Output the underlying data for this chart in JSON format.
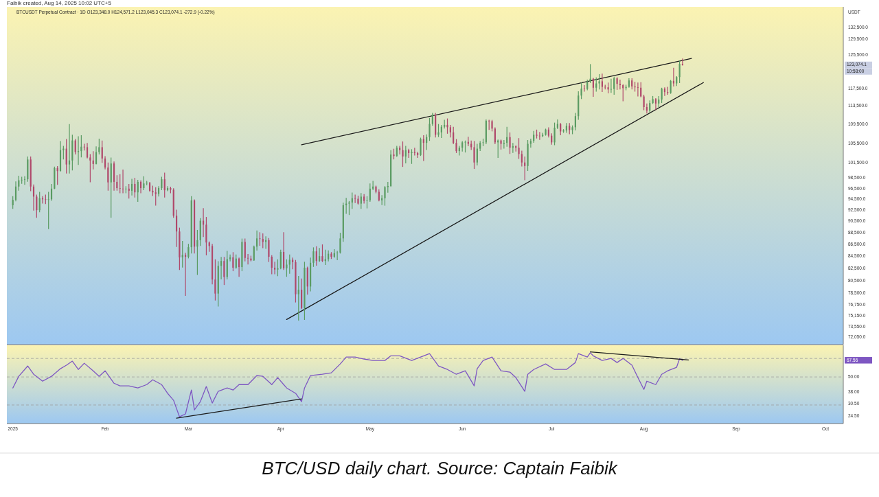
{
  "chart_data": [
    {
      "type": "candlestick",
      "title": "BTCUSDT Perpetual Contract · 1D  O123,348.0 H124,571.2 L123,045.3 C123,074.1 -272.9 (-0.22%)",
      "ylabel": "USDT",
      "log": true,
      "tick_labels": "y",
      "xlim": [
        "2024-12-30",
        "2025-10-07"
      ],
      "ylim": [
        71000,
        138000
      ],
      "yticks": [
        {
          "value": 72050,
          "label": "72,050.0"
        },
        {
          "value": 73550,
          "label": "73,550.0"
        },
        {
          "value": 75150,
          "label": "75,150.0"
        },
        {
          "value": 76750,
          "label": "76,750.0"
        },
        {
          "value": 78500,
          "label": "78,500.0"
        },
        {
          "value": 80500,
          "label": "80,500.0"
        },
        {
          "value": 82500,
          "label": "82,500.0"
        },
        {
          "value": 84500,
          "label": "84,500.0"
        },
        {
          "value": 86500,
          "label": "86,500.0"
        },
        {
          "value": 88500,
          "label": "88,500.0"
        },
        {
          "value": 90500,
          "label": "90,500.0"
        },
        {
          "value": 92500,
          "label": "92,500.0"
        },
        {
          "value": 94500,
          "label": "94,500.0"
        },
        {
          "value": 96500,
          "label": "96,500.0"
        },
        {
          "value": 98500,
          "label": "98,500.0"
        },
        {
          "value": 101500,
          "label": "101,500.0"
        },
        {
          "value": 105500,
          "label": "105,500.0"
        },
        {
          "value": 109500,
          "label": "109,500.0"
        },
        {
          "value": 113500,
          "label": "113,500.0"
        },
        {
          "value": 117500,
          "label": "117,500.0"
        },
        {
          "value": 125500,
          "label": "125,500.0"
        },
        {
          "value": 129500,
          "label": "129,500.0"
        },
        {
          "value": 132500,
          "label": "132,500.0"
        }
      ],
      "x": [
        "2025-01-01",
        "2025-01-02",
        "2025-01-03",
        "2025-01-04",
        "2025-01-05",
        "2025-01-06",
        "2025-01-07",
        "2025-01-08",
        "2025-01-09",
        "2025-01-10",
        "2025-01-11",
        "2025-01-12",
        "2025-01-13",
        "2025-01-14",
        "2025-01-15",
        "2025-01-16",
        "2025-01-17",
        "2025-01-18",
        "2025-01-19",
        "2025-01-20",
        "2025-01-21",
        "2025-01-22",
        "2025-01-23",
        "2025-01-24",
        "2025-01-25",
        "2025-01-26",
        "2025-01-27",
        "2025-01-28",
        "2025-01-29",
        "2025-01-30",
        "2025-01-31",
        "2025-02-01",
        "2025-02-02",
        "2025-02-03",
        "2025-02-04",
        "2025-02-05",
        "2025-02-06",
        "2025-02-07",
        "2025-02-08",
        "2025-02-09",
        "2025-02-10",
        "2025-02-11",
        "2025-02-12",
        "2025-02-13",
        "2025-02-14",
        "2025-02-15",
        "2025-02-16",
        "2025-02-17",
        "2025-02-18",
        "2025-02-19",
        "2025-02-20",
        "2025-02-21",
        "2025-02-22",
        "2025-02-23",
        "2025-02-24",
        "2025-02-25",
        "2025-02-26",
        "2025-02-27",
        "2025-02-28",
        "2025-03-01",
        "2025-03-02",
        "2025-03-03",
        "2025-03-04",
        "2025-03-05",
        "2025-03-06",
        "2025-03-07",
        "2025-03-08",
        "2025-03-09",
        "2025-03-10",
        "2025-03-11",
        "2025-03-12",
        "2025-03-13",
        "2025-03-14",
        "2025-03-15",
        "2025-03-16",
        "2025-03-17",
        "2025-03-18",
        "2025-03-19",
        "2025-03-20",
        "2025-03-21",
        "2025-03-22",
        "2025-03-23",
        "2025-03-24",
        "2025-03-25",
        "2025-03-26",
        "2025-03-27",
        "2025-03-28",
        "2025-03-29",
        "2025-03-30",
        "2025-03-31",
        "2025-04-01",
        "2025-04-02",
        "2025-04-03",
        "2025-04-04",
        "2025-04-05",
        "2025-04-06",
        "2025-04-07",
        "2025-04-08",
        "2025-04-09",
        "2025-04-10",
        "2025-04-11",
        "2025-04-12",
        "2025-04-13",
        "2025-04-14",
        "2025-04-15",
        "2025-04-16",
        "2025-04-17",
        "2025-04-18",
        "2025-04-19",
        "2025-04-20",
        "2025-04-21",
        "2025-04-22",
        "2025-04-23",
        "2025-04-24",
        "2025-04-25",
        "2025-04-26",
        "2025-04-27",
        "2025-04-28",
        "2025-04-29",
        "2025-04-30",
        "2025-05-01",
        "2025-05-02",
        "2025-05-03",
        "2025-05-04",
        "2025-05-05",
        "2025-05-06",
        "2025-05-07",
        "2025-05-08",
        "2025-05-09",
        "2025-05-10",
        "2025-05-11",
        "2025-05-12",
        "2025-05-13",
        "2025-05-14",
        "2025-05-15",
        "2025-05-16",
        "2025-05-17",
        "2025-05-18",
        "2025-05-19",
        "2025-05-20",
        "2025-05-21",
        "2025-05-22",
        "2025-05-23",
        "2025-05-24",
        "2025-05-25",
        "2025-05-26",
        "2025-05-27",
        "2025-05-28",
        "2025-05-29",
        "2025-05-30",
        "2025-05-31",
        "2025-06-01",
        "2025-06-02",
        "2025-06-03",
        "2025-06-04",
        "2025-06-05",
        "2025-06-06",
        "2025-06-07",
        "2025-06-08",
        "2025-06-09",
        "2025-06-10",
        "2025-06-11",
        "2025-06-12",
        "2025-06-13",
        "2025-06-14",
        "2025-06-15",
        "2025-06-16",
        "2025-06-17",
        "2025-06-18",
        "2025-06-19",
        "2025-06-20",
        "2025-06-21",
        "2025-06-22",
        "2025-06-23",
        "2025-06-24",
        "2025-06-25",
        "2025-06-26",
        "2025-06-27",
        "2025-06-28",
        "2025-06-29",
        "2025-06-30",
        "2025-07-01",
        "2025-07-02",
        "2025-07-03",
        "2025-07-04",
        "2025-07-05",
        "2025-07-06",
        "2025-07-07",
        "2025-07-08",
        "2025-07-09",
        "2025-07-10",
        "2025-07-11",
        "2025-07-12",
        "2025-07-13",
        "2025-07-14",
        "2025-07-15",
        "2025-07-16",
        "2025-07-17",
        "2025-07-18",
        "2025-07-19",
        "2025-07-20",
        "2025-07-21",
        "2025-07-22",
        "2025-07-23",
        "2025-07-24",
        "2025-07-25",
        "2025-07-26",
        "2025-07-27",
        "2025-07-28",
        "2025-07-29",
        "2025-07-30",
        "2025-07-31",
        "2025-08-01",
        "2025-08-02",
        "2025-08-03",
        "2025-08-04",
        "2025-08-05",
        "2025-08-06",
        "2025-08-07",
        "2025-08-08",
        "2025-08-09",
        "2025-08-10",
        "2025-08-11",
        "2025-08-12",
        "2025-08-13",
        "2025-08-14"
      ],
      "ohlc": [
        [
          93400,
          95000,
          92800,
          94400
        ],
        [
          94400,
          97800,
          94200,
          96900
        ],
        [
          96900,
          98900,
          96200,
          98100
        ],
        [
          98100,
          98700,
          97500,
          98200
        ],
        [
          98200,
          98800,
          97300,
          98300
        ],
        [
          98300,
          102700,
          97900,
          102200
        ],
        [
          102200,
          102700,
          96100,
          96900
        ],
        [
          96900,
          97200,
          92500,
          95000
        ],
        [
          95000,
          95300,
          91200,
          92500
        ],
        [
          92500,
          95800,
          92200,
          94700
        ],
        [
          94700,
          95000,
          93800,
          94500
        ],
        [
          94500,
          95300,
          93700,
          94400
        ],
        [
          94400,
          95800,
          89200,
          94500
        ],
        [
          94500,
          97300,
          94300,
          96500
        ],
        [
          96500,
          100700,
          96500,
          100500
        ],
        [
          100500,
          100800,
          97300,
          99900
        ],
        [
          99900,
          105900,
          99900,
          104100
        ],
        [
          104100,
          104900,
          102300,
          104400
        ],
        [
          104400,
          106300,
          99500,
          101200
        ],
        [
          101200,
          109500,
          99500,
          102000
        ],
        [
          102000,
          107200,
          100100,
          106100
        ],
        [
          106100,
          106300,
          103300,
          103700
        ],
        [
          103700,
          106900,
          101200,
          103900
        ],
        [
          103900,
          107100,
          102700,
          104800
        ],
        [
          104800,
          105300,
          104100,
          104700
        ],
        [
          104700,
          105500,
          102500,
          102600
        ],
        [
          102600,
          103200,
          97800,
          102000
        ],
        [
          102000,
          103800,
          100300,
          101300
        ],
        [
          101300,
          104800,
          101300,
          103700
        ],
        [
          103700,
          106400,
          103300,
          104700
        ],
        [
          104700,
          106000,
          101600,
          102400
        ],
        [
          102400,
          102800,
          100300,
          100600
        ],
        [
          100600,
          101500,
          96200,
          97700
        ],
        [
          97700,
          102500,
          91200,
          101400
        ],
        [
          101400,
          101700,
          96200,
          97800
        ],
        [
          97800,
          99000,
          96200,
          96600
        ],
        [
          96600,
          99200,
          95700,
          96500
        ],
        [
          96500,
          100100,
          95700,
          96400
        ],
        [
          96400,
          96900,
          95700,
          96500
        ],
        [
          96500,
          97300,
          94700,
          96100
        ],
        [
          96100,
          98300,
          95300,
          97400
        ],
        [
          97400,
          98500,
          94900,
          95800
        ],
        [
          95800,
          98100,
          94100,
          97800
        ],
        [
          97800,
          98000,
          95700,
          96600
        ],
        [
          96600,
          98800,
          96300,
          97500
        ],
        [
          97500,
          97900,
          97200,
          97600
        ],
        [
          97600,
          97700,
          96000,
          96100
        ],
        [
          96100,
          97000,
          95200,
          95800
        ],
        [
          95800,
          96700,
          93400,
          95500
        ],
        [
          95500,
          96900,
          95100,
          96600
        ],
        [
          96600,
          98700,
          96300,
          98300
        ],
        [
          98300,
          99500,
          94900,
          96200
        ],
        [
          96200,
          96900,
          96100,
          96600
        ],
        [
          96600,
          96800,
          95700,
          96300
        ],
        [
          96300,
          96500,
          91200,
          91500
        ],
        [
          91500,
          92500,
          86100,
          88700
        ],
        [
          88700,
          89300,
          82300,
          84300
        ],
        [
          84300,
          87000,
          82700,
          84700
        ],
        [
          84700,
          85000,
          78200,
          84400
        ],
        [
          84400,
          86500,
          84200,
          86000
        ],
        [
          86000,
          95000,
          85000,
          94300
        ],
        [
          94300,
          94400,
          85000,
          86100
        ],
        [
          86100,
          88900,
          81500,
          87200
        ],
        [
          87200,
          91000,
          86300,
          90600
        ],
        [
          90600,
          92800,
          87800,
          89900
        ],
        [
          89900,
          91200,
          84700,
          86800
        ],
        [
          86800,
          86900,
          85300,
          86200
        ],
        [
          86200,
          86500,
          80000,
          80700
        ],
        [
          80700,
          83900,
          77500,
          78500
        ],
        [
          78500,
          83600,
          76600,
          82900
        ],
        [
          82900,
          84300,
          80800,
          83700
        ],
        [
          83700,
          84300,
          79900,
          81100
        ],
        [
          81100,
          85300,
          80800,
          84000
        ],
        [
          84000,
          84700,
          83700,
          84300
        ],
        [
          84300,
          85100,
          82100,
          82600
        ],
        [
          82600,
          84700,
          82500,
          84100
        ],
        [
          84100,
          84200,
          81200,
          82700
        ],
        [
          82700,
          87400,
          82100,
          86900
        ],
        [
          86900,
          87400,
          83700,
          84200
        ],
        [
          84200,
          84800,
          83200,
          84100
        ],
        [
          84100,
          84500,
          83700,
          83800
        ],
        [
          83800,
          86200,
          83800,
          86100
        ],
        [
          86100,
          88800,
          85500,
          87500
        ],
        [
          87500,
          88500,
          86300,
          87400
        ],
        [
          87400,
          88300,
          85900,
          86900
        ],
        [
          86900,
          87800,
          85800,
          87200
        ],
        [
          87200,
          87500,
          83600,
          84400
        ],
        [
          84400,
          84600,
          81600,
          82600
        ],
        [
          82600,
          83500,
          81600,
          82300
        ],
        [
          82300,
          83900,
          81300,
          82500
        ],
        [
          82500,
          85500,
          82400,
          85200
        ],
        [
          85200,
          88500,
          82300,
          82500
        ],
        [
          82500,
          83900,
          81200,
          83100
        ],
        [
          83100,
          84700,
          81700,
          83900
        ],
        [
          83900,
          84200,
          82400,
          83500
        ],
        [
          83500,
          83800,
          77200,
          78400
        ],
        [
          78400,
          81200,
          74500,
          79100
        ],
        [
          79100,
          80800,
          76200,
          76300
        ],
        [
          76300,
          83500,
          74600,
          82600
        ],
        [
          82600,
          82700,
          78400,
          79600
        ],
        [
          79600,
          84200,
          78900,
          83400
        ],
        [
          83400,
          85900,
          82800,
          85300
        ],
        [
          85300,
          86100,
          83000,
          83700
        ],
        [
          83700,
          85800,
          83600,
          84500
        ],
        [
          84500,
          86400,
          83600,
          83700
        ],
        [
          83700,
          85500,
          83100,
          84000
        ],
        [
          84000,
          85400,
          83700,
          84900
        ],
        [
          84900,
          85100,
          84100,
          84400
        ],
        [
          84400,
          85600,
          84300,
          85000
        ],
        [
          85000,
          85300,
          83900,
          85100
        ],
        [
          85100,
          88400,
          85000,
          87500
        ],
        [
          87500,
          93800,
          87000,
          93400
        ],
        [
          93400,
          94700,
          91900,
          93700
        ],
        [
          93700,
          94100,
          91700,
          93900
        ],
        [
          93900,
          95700,
          92800,
          94700
        ],
        [
          94700,
          95300,
          93900,
          94600
        ],
        [
          94600,
          95100,
          93600,
          93700
        ],
        [
          93700,
          95600,
          92800,
          95000
        ],
        [
          95000,
          95400,
          93800,
          94200
        ],
        [
          94200,
          95000,
          92900,
          94300
        ],
        [
          94300,
          97400,
          94100,
          96500
        ],
        [
          96500,
          97900,
          96300,
          96900
        ],
        [
          96900,
          97000,
          95700,
          95900
        ],
        [
          95900,
          96300,
          94200,
          94300
        ],
        [
          94300,
          95200,
          93500,
          94700
        ],
        [
          94700,
          96900,
          93400,
          96800
        ],
        [
          96800,
          97700,
          95800,
          97000
        ],
        [
          97000,
          104000,
          96900,
          103200
        ],
        [
          103200,
          104300,
          102300,
          102900
        ],
        [
          102900,
          104900,
          102800,
          104600
        ],
        [
          104600,
          104900,
          103300,
          104100
        ],
        [
          104100,
          105800,
          100800,
          102800
        ],
        [
          102800,
          104900,
          101500,
          104100
        ],
        [
          104100,
          104300,
          102600,
          103500
        ],
        [
          103500,
          104200,
          101400,
          103700
        ],
        [
          103700,
          104500,
          103100,
          103500
        ],
        [
          103500,
          103700,
          102600,
          103100
        ],
        [
          103100,
          106600,
          103000,
          106400
        ],
        [
          106400,
          107100,
          102000,
          105600
        ],
        [
          105600,
          107300,
          104200,
          106800
        ],
        [
          106800,
          110800,
          106100,
          109600
        ],
        [
          109600,
          111900,
          109300,
          111600
        ],
        [
          111600,
          111900,
          106800,
          107300
        ],
        [
          107300,
          109500,
          106900,
          107800
        ],
        [
          107800,
          109300,
          106700,
          109000
        ],
        [
          109000,
          110400,
          108700,
          109400
        ],
        [
          109400,
          110700,
          107600,
          108900
        ],
        [
          108900,
          109300,
          106800,
          107800
        ],
        [
          107800,
          108900,
          105400,
          105600
        ],
        [
          105600,
          106300,
          103600,
          103900
        ],
        [
          103900,
          104900,
          103100,
          104600
        ],
        [
          104600,
          105900,
          103900,
          105700
        ],
        [
          105700,
          106000,
          103700,
          105800
        ],
        [
          105800,
          106800,
          105000,
          105400
        ],
        [
          105400,
          106000,
          104200,
          104700
        ],
        [
          104700,
          105900,
          100400,
          101600
        ],
        [
          101600,
          105300,
          101100,
          104400
        ],
        [
          104400,
          105900,
          104000,
          105600
        ],
        [
          105600,
          106400,
          105000,
          105700
        ],
        [
          105700,
          110500,
          105400,
          110300
        ],
        [
          110300,
          110400,
          108400,
          110200
        ],
        [
          110200,
          110400,
          108100,
          108600
        ],
        [
          108600,
          108800,
          105400,
          105700
        ],
        [
          105700,
          106200,
          102600,
          106100
        ],
        [
          106100,
          106200,
          104300,
          105400
        ],
        [
          105400,
          106100,
          104500,
          105600
        ],
        [
          105600,
          108900,
          104900,
          106800
        ],
        [
          106800,
          107700,
          103400,
          104600
        ],
        [
          104600,
          105500,
          103600,
          104900
        ],
        [
          104900,
          105000,
          103900,
          104600
        ],
        [
          104600,
          106500,
          102400,
          103300
        ],
        [
          103300,
          103900,
          100900,
          101600
        ],
        [
          101600,
          102700,
          98200,
          100900
        ],
        [
          100900,
          106100,
          100000,
          105400
        ],
        [
          105400,
          106400,
          104700,
          106000
        ],
        [
          106000,
          108000,
          105700,
          107300
        ],
        [
          107300,
          108300,
          106600,
          107100
        ],
        [
          107100,
          107800,
          106300,
          107000
        ],
        [
          107000,
          107600,
          106900,
          107300
        ],
        [
          107300,
          108500,
          107200,
          108400
        ],
        [
          108400,
          108800,
          106800,
          107100
        ],
        [
          107100,
          107500,
          105300,
          105700
        ],
        [
          105700,
          109800,
          105200,
          108800
        ],
        [
          108800,
          110500,
          108600,
          109600
        ],
        [
          109600,
          109700,
          107300,
          108000
        ],
        [
          108000,
          108400,
          107800,
          108200
        ],
        [
          108200,
          109700,
          107800,
          109200
        ],
        [
          109200,
          109700,
          107500,
          108300
        ],
        [
          108300,
          109200,
          107500,
          108900
        ],
        [
          108900,
          111900,
          108300,
          111300
        ],
        [
          111300,
          116800,
          110600,
          115900
        ],
        [
          115900,
          118800,
          115200,
          117500
        ],
        [
          117500,
          118200,
          116900,
          117400
        ],
        [
          117400,
          119500,
          117200,
          119100
        ],
        [
          119100,
          123200,
          118900,
          119800
        ],
        [
          119800,
          119900,
          115700,
          117700
        ],
        [
          117700,
          120000,
          116900,
          118700
        ],
        [
          118700,
          120800,
          117400,
          119200
        ],
        [
          119200,
          120900,
          116800,
          117900
        ],
        [
          117900,
          118300,
          117400,
          117800
        ],
        [
          117800,
          118800,
          116500,
          117300
        ],
        [
          117300,
          119700,
          116600,
          117400
        ],
        [
          117400,
          120200,
          116200,
          119900
        ],
        [
          119900,
          120100,
          117300,
          118600
        ],
        [
          118600,
          119500,
          117400,
          118300
        ],
        [
          118300,
          118400,
          114700,
          117600
        ],
        [
          117600,
          118300,
          117200,
          117900
        ],
        [
          117900,
          119800,
          117800,
          119400
        ],
        [
          119400,
          119800,
          117400,
          118000
        ],
        [
          118000,
          119000,
          116900,
          117800
        ],
        [
          117800,
          118800,
          115800,
          117700
        ],
        [
          117700,
          118900,
          115600,
          115700
        ],
        [
          115700,
          116000,
          112700,
          113300
        ],
        [
          113300,
          114000,
          112000,
          112500
        ],
        [
          112500,
          114700,
          112200,
          114200
        ],
        [
          114200,
          115700,
          114100,
          115100
        ],
        [
          115100,
          115200,
          112700,
          114100
        ],
        [
          114100,
          115700,
          113400,
          115000
        ],
        [
          115000,
          117600,
          114300,
          117500
        ],
        [
          117500,
          117700,
          115900,
          116700
        ],
        [
          116700,
          117800,
          116200,
          116500
        ],
        [
          116500,
          119400,
          116400,
          119300
        ],
        [
          119300,
          122300,
          118100,
          118700
        ],
        [
          118700,
          120300,
          118200,
          120200
        ],
        [
          120200,
          124000,
          118900,
          123348
        ],
        [
          123348,
          124571.2,
          123045.3,
          123074.1
        ]
      ],
      "series": [
        {
          "type": "line",
          "color": "#1a1a1a",
          "x": [
            "2025-04-08",
            "2025-08-17"
          ],
          "values": [
            105200,
            124700
          ]
        },
        {
          "type": "line",
          "color": "#1a1a1a",
          "x": [
            "2025-04-03",
            "2025-08-21"
          ],
          "values": [
            74600,
            118900
          ]
        }
      ],
      "annotations": [
        "Faibik created, Aug 14, 2025 10:02 UTC+5",
        "123,074.1",
        "10:58:00",
        "BTC/USD daily chart. Source: Captain Faibik"
      ]
    },
    {
      "type": "line",
      "log": true,
      "xlim": [
        "2024-12-30",
        "2025-10-07"
      ],
      "ylim": [
        21.4,
        89
      ],
      "xticks": [
        {
          "value": "2025-01-01",
          "label": "2025"
        },
        {
          "value": "2025-02-01",
          "label": "Feb"
        },
        {
          "value": "2025-03-01",
          "label": "Mar"
        },
        {
          "value": "2025-04-01",
          "label": "Apr"
        },
        {
          "value": "2025-05-01",
          "label": "May"
        },
        {
          "value": "2025-06-01",
          "label": "Jun"
        },
        {
          "value": "2025-07-01",
          "label": "Jul"
        },
        {
          "value": "2025-08-01",
          "label": "Aug"
        },
        {
          "value": "2025-09-01",
          "label": "Sep"
        },
        {
          "value": "2025-10-01",
          "label": "Oct"
        }
      ],
      "yticks": [
        {
          "value": 24.5,
          "label": "24.50"
        },
        {
          "value": 30.5,
          "label": "30.50"
        },
        {
          "value": 38,
          "label": "38.00"
        },
        {
          "value": 50,
          "label": "50.00"
        }
      ],
      "ref_lines": [
        {
          "axis": "y",
          "value": 70,
          "color": "#9e9e9e",
          "line_style": "dashed"
        },
        {
          "axis": "y",
          "value": 50,
          "color": "#9e9e9e",
          "line_style": "dashed"
        },
        {
          "axis": "y",
          "value": 30,
          "color": "#9e9e9e",
          "line_style": "dashed"
        }
      ],
      "series": [
        {
          "color": "#7e57c2",
          "x": [
            "2025-01-01",
            "2025-01-03",
            "2025-01-06",
            "2025-01-08",
            "2025-01-11",
            "2025-01-14",
            "2025-01-17",
            "2025-01-19",
            "2025-01-21",
            "2025-01-23",
            "2025-01-25",
            "2025-01-28",
            "2025-01-30",
            "2025-02-01",
            "2025-02-04",
            "2025-02-06",
            "2025-02-09",
            "2025-02-12",
            "2025-02-15",
            "2025-02-17",
            "2025-02-20",
            "2025-02-22",
            "2025-02-24",
            "2025-02-26",
            "2025-02-28",
            "2025-03-02",
            "2025-03-03",
            "2025-03-05",
            "2025-03-07",
            "2025-03-09",
            "2025-03-11",
            "2025-03-14",
            "2025-03-16",
            "2025-03-18",
            "2025-03-21",
            "2025-03-24",
            "2025-03-26",
            "2025-03-29",
            "2025-03-31",
            "2025-04-02",
            "2025-04-03",
            "2025-04-06",
            "2025-04-08",
            "2025-04-09",
            "2025-04-11",
            "2025-04-15",
            "2025-04-18",
            "2025-04-21",
            "2025-04-23",
            "2025-04-26",
            "2025-04-29",
            "2025-05-02",
            "2025-05-06",
            "2025-05-08",
            "2025-05-11",
            "2025-05-15",
            "2025-05-18",
            "2025-05-21",
            "2025-05-24",
            "2025-05-27",
            "2025-05-30",
            "2025-06-02",
            "2025-06-05",
            "2025-06-06",
            "2025-06-08",
            "2025-06-11",
            "2025-06-14",
            "2025-06-17",
            "2025-06-19",
            "2025-06-22",
            "2025-06-23",
            "2025-06-25",
            "2025-06-29",
            "2025-07-02",
            "2025-07-06",
            "2025-07-09",
            "2025-07-10",
            "2025-07-13",
            "2025-07-14",
            "2025-07-15",
            "2025-07-18",
            "2025-07-21",
            "2025-07-23",
            "2025-07-25",
            "2025-07-28",
            "2025-07-30",
            "2025-08-01",
            "2025-08-02",
            "2025-08-05",
            "2025-08-07",
            "2025-08-09",
            "2025-08-12",
            "2025-08-13",
            "2025-08-14"
          ],
          "values": [
            40.9,
            50.6,
            61,
            52.5,
            46.3,
            50.6,
            58.1,
            61.9,
            66.7,
            57.3,
            64.2,
            55.9,
            50.6,
            55.9,
            44.6,
            42.5,
            42.5,
            40.9,
            43.5,
            47.5,
            43.5,
            37.1,
            32.7,
            24.2,
            25.5,
            39.4,
            27.4,
            31.9,
            42,
            31.1,
            38.5,
            40.9,
            39.4,
            43.5,
            43.5,
            51.3,
            50.6,
            43.5,
            49.4,
            43.5,
            40.9,
            37.1,
            31.9,
            40.9,
            51.3,
            52.5,
            53.9,
            63.4,
            71.9,
            71.9,
            69.3,
            67.5,
            67.5,
            73.5,
            73.5,
            67.5,
            71.9,
            76.5,
            61,
            57.3,
            52.5,
            55.9,
            42.5,
            58.1,
            67.5,
            71.9,
            55.9,
            54.6,
            49.4,
            38.5,
            52.5,
            57.3,
            63.4,
            57.3,
            57.3,
            65,
            76.5,
            71.9,
            77.7,
            73.5,
            67.5,
            70.1,
            65,
            70.1,
            61.9,
            49.4,
            39.9,
            46.3,
            43.5,
            52.5,
            55.9,
            59.6,
            69.8,
            67.56
          ]
        },
        {
          "color": "#1a1a1a",
          "x": [
            "2025-02-25",
            "2025-04-08"
          ],
          "values": [
            23.6,
            33.5
          ]
        },
        {
          "color": "#1a1a1a",
          "x": [
            "2025-07-14",
            "2025-08-16"
          ],
          "values": [
            79,
            68.2
          ]
        }
      ],
      "annotations": [
        "67.56"
      ]
    }
  ]
}
